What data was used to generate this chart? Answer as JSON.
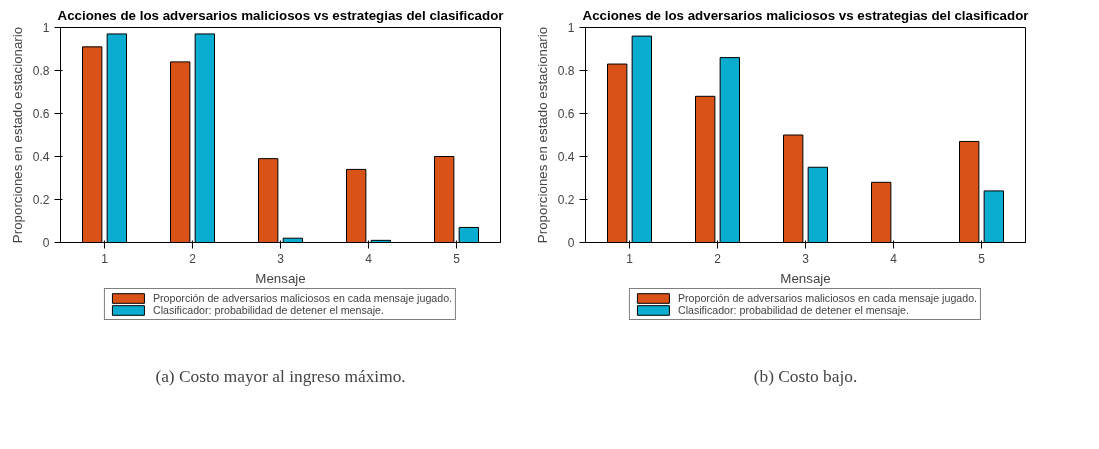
{
  "chart_data": [
    {
      "type": "bar",
      "title": "Acciones de los adversarios maliciosos vs estrategias del clasificador",
      "xlabel": "Mensaje",
      "ylabel": "Proporciones en estado estacionario",
      "categories": [
        "1",
        "2",
        "3",
        "4",
        "5"
      ],
      "ylim": [
        0,
        1
      ],
      "yticks": [
        0,
        0.2,
        0.4,
        0.6,
        0.8,
        1
      ],
      "legend": "bottom",
      "grid": false,
      "series": [
        {
          "name": "Proporción de adversarios maliciosos en cada mensaje jugado.",
          "color": "#d95319",
          "values": [
            0.91,
            0.84,
            0.39,
            0.34,
            0.4
          ]
        },
        {
          "name": "Clasificador: probabilidad de detener el mensaje.",
          "color": "#0aacd0",
          "values": [
            0.97,
            0.97,
            0.02,
            0.01,
            0.07
          ]
        }
      ],
      "annotations": [
        "(a) Costo mayor al ingreso máximo."
      ]
    },
    {
      "type": "bar",
      "title": "Acciones de los adversarios maliciosos vs estrategias del clasificador",
      "xlabel": "Mensaje",
      "ylabel": "Proporciones en estado estacionario",
      "categories": [
        "1",
        "2",
        "3",
        "4",
        "5"
      ],
      "ylim": [
        0,
        1
      ],
      "yticks": [
        0,
        0.2,
        0.4,
        0.6,
        0.8,
        1
      ],
      "legend": "bottom",
      "grid": false,
      "series": [
        {
          "name": "Proporción de adversarios maliciosos en cada mensaje jugado.",
          "color": "#d95319",
          "values": [
            0.83,
            0.68,
            0.5,
            0.28,
            0.47
          ]
        },
        {
          "name": "Clasificador: probabilidad de detener el mensaje.",
          "color": "#0aacd0",
          "values": [
            0.96,
            0.86,
            0.35,
            0,
            0.24
          ]
        }
      ],
      "annotations": [
        "(b) Costo bajo."
      ]
    }
  ]
}
